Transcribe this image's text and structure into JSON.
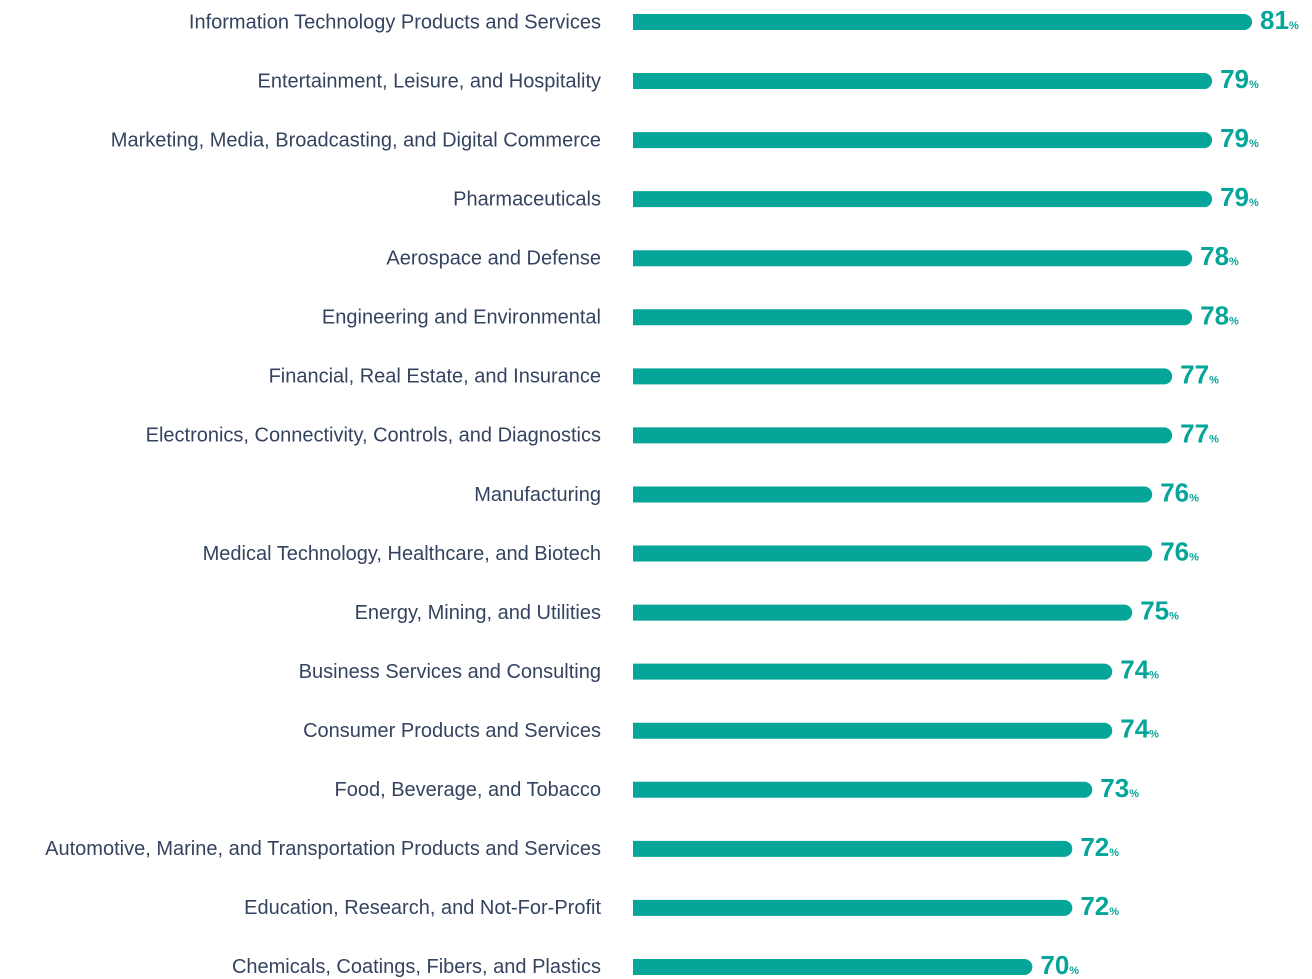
{
  "chart_data": {
    "type": "bar",
    "orientation": "horizontal",
    "color": "#06a59a",
    "categories": [
      "Information Technology Products and Services",
      "Entertainment, Leisure, and Hospitality",
      "Marketing, Media, Broadcasting, and Digital Commerce",
      "Pharmaceuticals",
      "Aerospace and Defense",
      "Engineering and Environmental",
      "Financial, Real Estate, and Insurance",
      "Electronics, Connectivity, Controls, and Diagnostics",
      "Manufacturing",
      "Medical Technology, Healthcare, and Biotech",
      "Energy, Mining, and Utilities",
      "Business Services and Consulting",
      "Consumer Products and Services",
      "Food, Beverage, and Tobacco",
      "Automotive, Marine, and Transportation Products and Services",
      "Education, Research, and Not-For-Profit",
      "Chemicals, Coatings, Fibers, and Plastics"
    ],
    "values": [
      81,
      79,
      79,
      79,
      78,
      78,
      77,
      77,
      76,
      76,
      75,
      74,
      74,
      73,
      72,
      72,
      70
    ],
    "value_labels": [
      "81%",
      "79%",
      "79%",
      "79%",
      "78%",
      "78%",
      "77%",
      "77%",
      "76%",
      "76%",
      "75%",
      "74%",
      "74%",
      "73%",
      "72%",
      "72%",
      "70%"
    ],
    "xlim": [
      50,
      82
    ]
  }
}
